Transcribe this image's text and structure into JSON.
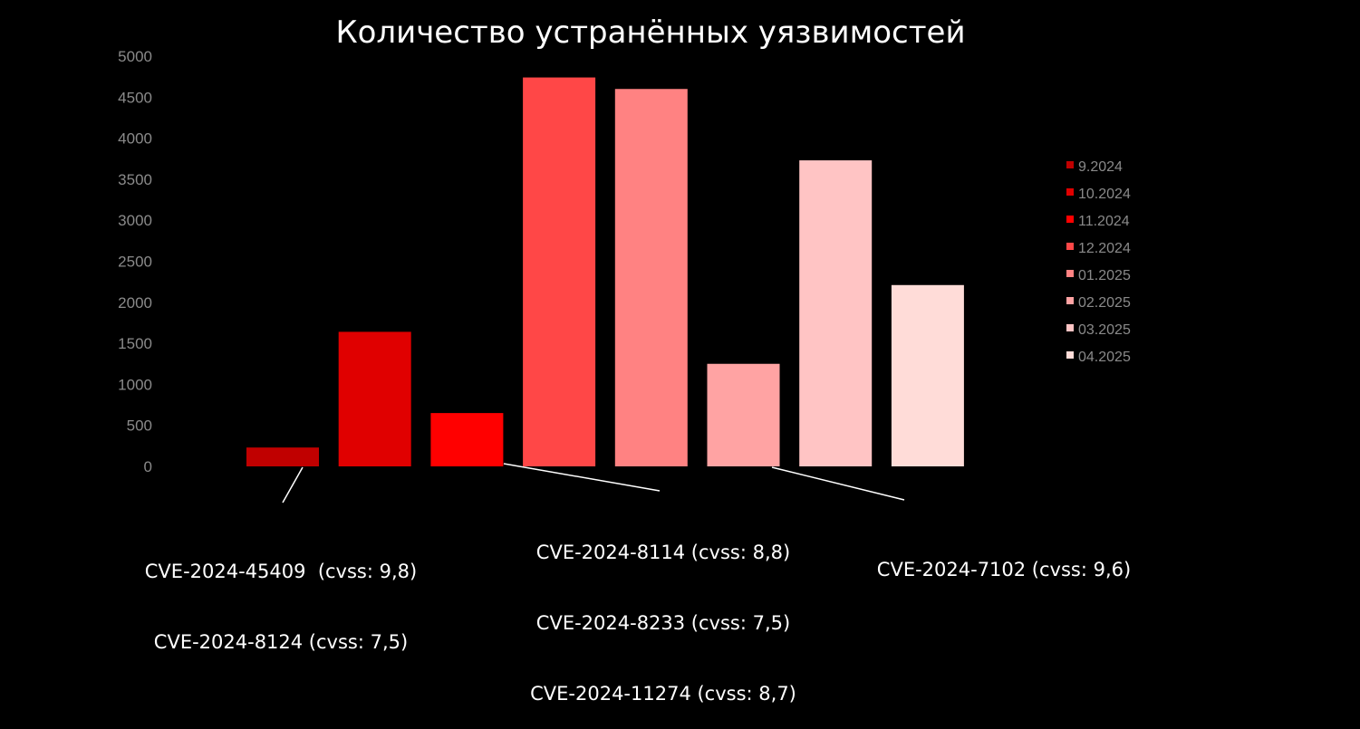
{
  "chart_data": {
    "type": "bar",
    "title": "Количество устранённых уязвимостей",
    "categories": [
      "9.2024",
      "10.2024",
      "11.2024",
      "12.2024",
      "01.2025",
      "02.2025",
      "03.2025",
      "04.2025"
    ],
    "values": [
      230,
      1640,
      650,
      4740,
      4600,
      1250,
      3730,
      2210
    ],
    "colors": [
      "#c00000",
      "#e00000",
      "#ff0000",
      "#ff4747",
      "#ff8282",
      "#ffa3a3",
      "#ffc4c4",
      "#ffdcd8"
    ],
    "ylim": [
      0,
      5000
    ],
    "yticks": [
      0,
      500,
      1000,
      1500,
      2000,
      2500,
      3000,
      3500,
      4000,
      4500,
      5000
    ],
    "legend": [
      "9.2024",
      "10.2024",
      "11.2024",
      "12.2024",
      "01.2025",
      "02.2025",
      "03.2025",
      "04.2025"
    ],
    "legend_position": "right",
    "grid": false,
    "annotations": [
      {
        "lines": [
          "CVE-2024-45409  (cvss: 9,8)",
          "CVE-2024-8124 (cvss: 7,5)"
        ],
        "category": "9.2024"
      },
      {
        "lines": [
          "CVE-2024-8114 (cvss: 8,8)",
          "CVE-2024-8233 (cvss: 7,5)",
          "CVE-2024-11274 (cvss: 8,7)"
        ],
        "category": "11.2024"
      },
      {
        "lines": [
          "CVE-2024-7102 (cvss: 9,6)"
        ],
        "category": "02.2025"
      }
    ]
  }
}
